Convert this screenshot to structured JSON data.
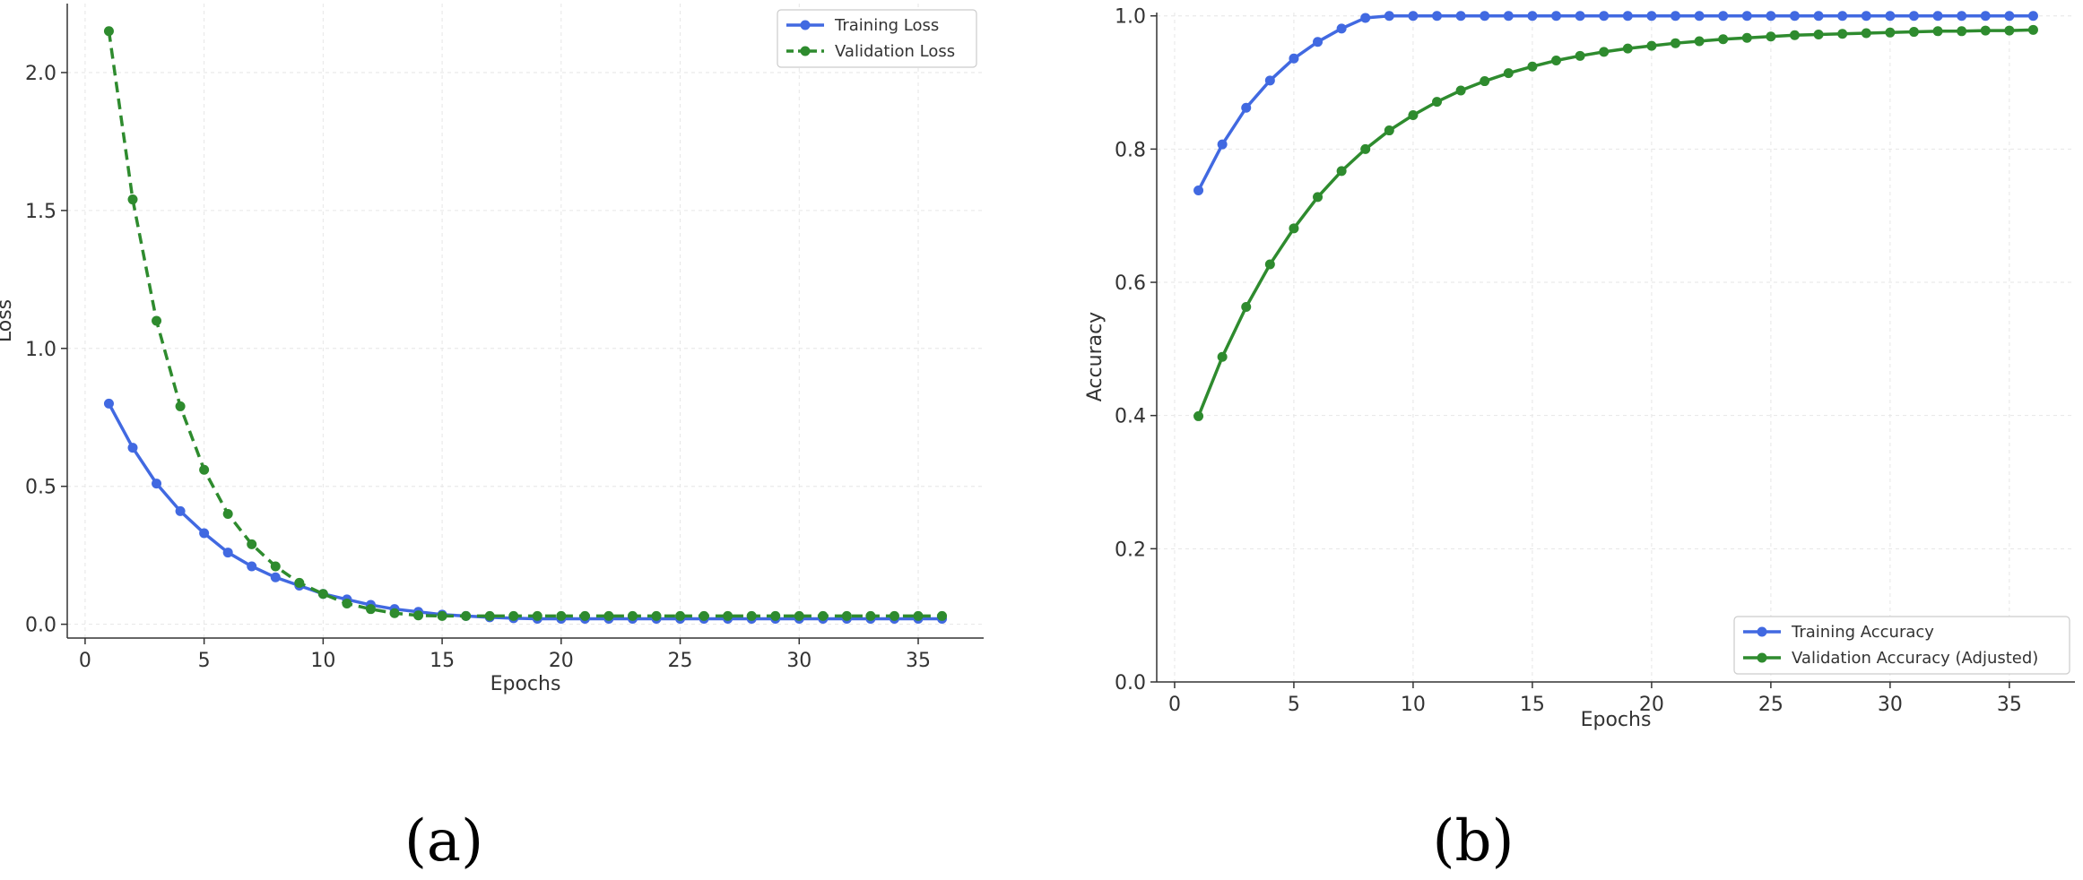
{
  "chart_data": [
    {
      "type": "line",
      "caption": "(a)",
      "xlabel": "Epochs",
      "ylabel": "Loss",
      "xlim": [
        -0.75,
        37.75
      ],
      "ylim": [
        -0.05,
        2.25
      ],
      "xticks": [
        0,
        5,
        10,
        15,
        20,
        25,
        30,
        35
      ],
      "yticks": [
        0.0,
        0.5,
        1.0,
        1.5,
        2.0
      ],
      "xtick_labels": [
        "0",
        "5",
        "10",
        "15",
        "20",
        "25",
        "30",
        "35"
      ],
      "ytick_labels": [
        "0.0",
        "0.5",
        "1.0",
        "1.5",
        "2.0"
      ],
      "grid": true,
      "legend_position": "top-right",
      "x": [
        1,
        2,
        3,
        4,
        5,
        6,
        7,
        8,
        9,
        10,
        11,
        12,
        13,
        14,
        15,
        16,
        17,
        18,
        19,
        20,
        21,
        22,
        23,
        24,
        25,
        26,
        27,
        28,
        29,
        30,
        31,
        32,
        33,
        34,
        35,
        36
      ],
      "series": [
        {
          "name": "Training Loss",
          "color": "#4169e1",
          "dashed": false,
          "values": [
            0.8,
            0.64,
            0.51,
            0.41,
            0.33,
            0.26,
            0.21,
            0.17,
            0.14,
            0.11,
            0.09,
            0.07,
            0.055,
            0.045,
            0.035,
            0.03,
            0.025,
            0.022,
            0.02,
            0.02,
            0.02,
            0.02,
            0.02,
            0.02,
            0.02,
            0.02,
            0.02,
            0.02,
            0.02,
            0.02,
            0.02,
            0.02,
            0.02,
            0.02,
            0.02,
            0.02
          ]
        },
        {
          "name": "Validation Loss",
          "color": "#2e8b2e",
          "dashed": true,
          "values": [
            2.15,
            1.54,
            1.1,
            0.79,
            0.56,
            0.4,
            0.29,
            0.21,
            0.15,
            0.11,
            0.075,
            0.055,
            0.04,
            0.032,
            0.03,
            0.03,
            0.03,
            0.03,
            0.03,
            0.03,
            0.03,
            0.03,
            0.03,
            0.03,
            0.03,
            0.03,
            0.03,
            0.03,
            0.03,
            0.03,
            0.03,
            0.03,
            0.03,
            0.03,
            0.03,
            0.03
          ]
        }
      ]
    },
    {
      "type": "line",
      "caption": "(b)",
      "xlabel": "Epochs",
      "ylabel": "Accuracy",
      "xlim": [
        -0.75,
        37.75
      ],
      "ylim": [
        0.0,
        1.005
      ],
      "xticks": [
        0,
        5,
        10,
        15,
        20,
        25,
        30,
        35
      ],
      "yticks": [
        0.0,
        0.2,
        0.4,
        0.6,
        0.8,
        1.0
      ],
      "xtick_labels": [
        "0",
        "5",
        "10",
        "15",
        "20",
        "25",
        "30",
        "35"
      ],
      "ytick_labels": [
        "0.0",
        "0.2",
        "0.4",
        "0.6",
        "0.8",
        "1.0"
      ],
      "grid": true,
      "legend_position": "bottom-right",
      "x": [
        1,
        2,
        3,
        4,
        5,
        6,
        7,
        8,
        9,
        10,
        11,
        12,
        13,
        14,
        15,
        16,
        17,
        18,
        19,
        20,
        21,
        22,
        23,
        24,
        25,
        26,
        27,
        28,
        29,
        30,
        31,
        32,
        33,
        34,
        35,
        36
      ],
      "series": [
        {
          "name": "Training Accuracy",
          "color": "#4169e1",
          "dashed": false,
          "values": [
            0.738,
            0.807,
            0.862,
            0.903,
            0.936,
            0.961,
            0.981,
            0.997,
            1.0,
            1.0,
            1.0,
            1.0,
            1.0,
            1.0,
            1.0,
            1.0,
            1.0,
            1.0,
            1.0,
            1.0,
            1.0,
            1.0,
            1.0,
            1.0,
            1.0,
            1.0,
            1.0,
            1.0,
            1.0,
            1.0,
            1.0,
            1.0,
            1.0,
            1.0,
            1.0,
            1.0
          ]
        },
        {
          "name": "Validation Accuracy (Adjusted)",
          "color": "#2e8b2e",
          "dashed": false,
          "values": [
            0.399,
            0.488,
            0.563,
            0.627,
            0.681,
            0.728,
            0.767,
            0.8,
            0.828,
            0.851,
            0.871,
            0.888,
            0.902,
            0.914,
            0.924,
            0.933,
            0.94,
            0.946,
            0.951,
            0.955,
            0.959,
            0.962,
            0.965,
            0.967,
            0.969,
            0.971,
            0.972,
            0.973,
            0.974,
            0.975,
            0.976,
            0.977,
            0.977,
            0.978,
            0.978,
            0.979
          ]
        }
      ]
    }
  ]
}
